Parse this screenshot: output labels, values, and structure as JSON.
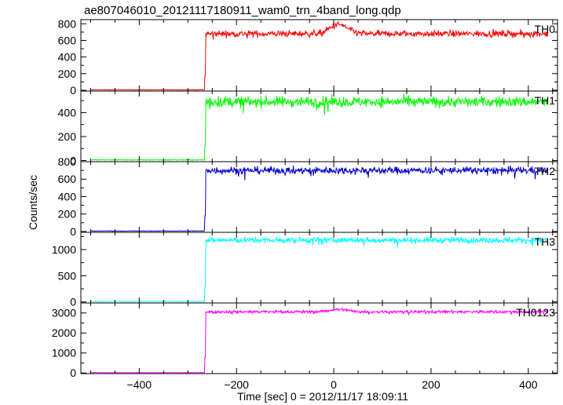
{
  "chart_data": {
    "type": "line",
    "title": "ae807046010_20121117180911_wam0_trn_4band_long.qdp",
    "xlabel": "Time [sec] 0 = 2012/11/17 18:09:11",
    "ylabel": "Counts/sec",
    "xlim": [
      -520,
      460
    ],
    "xticks": [
      -400,
      -200,
      0,
      200,
      400
    ],
    "trigger_time": -265,
    "series": [
      {
        "name": "TH0",
        "color": "#ff0000",
        "ylim": [
          -10,
          850
        ],
        "yticks": [
          0,
          200,
          400,
          600,
          800
        ],
        "pre_level": 5,
        "post_level": 680,
        "noise": 28,
        "bump": {
          "x": 10,
          "width": 40,
          "height": 110
        }
      },
      {
        "name": "TH1",
        "color": "#00ff00",
        "ylim": [
          -10,
          580
        ],
        "yticks": [
          0,
          200,
          400
        ],
        "pre_level": 5,
        "post_level": 490,
        "noise": 32,
        "bump": null
      },
      {
        "name": "TH2",
        "color": "#0000cc",
        "ylim": [
          -10,
          800
        ],
        "yticks": [
          0,
          200,
          400,
          600,
          800
        ],
        "pre_level": 5,
        "post_level": 700,
        "noise": 30,
        "bump": null
      },
      {
        "name": "TH3",
        "color": "#00ffff",
        "ylim": [
          -20,
          1330
        ],
        "yticks": [
          0,
          500,
          1000
        ],
        "pre_level": 10,
        "post_level": 1180,
        "noise": 40,
        "bump": null
      },
      {
        "name": "TH0123",
        "color": "#ff00ff",
        "ylim": [
          -30,
          3500
        ],
        "yticks": [
          0,
          1000,
          2000,
          3000
        ],
        "pre_level": 20,
        "post_level": 3060,
        "noise": 55,
        "bump": {
          "x": 10,
          "width": 40,
          "height": 120
        }
      }
    ]
  }
}
